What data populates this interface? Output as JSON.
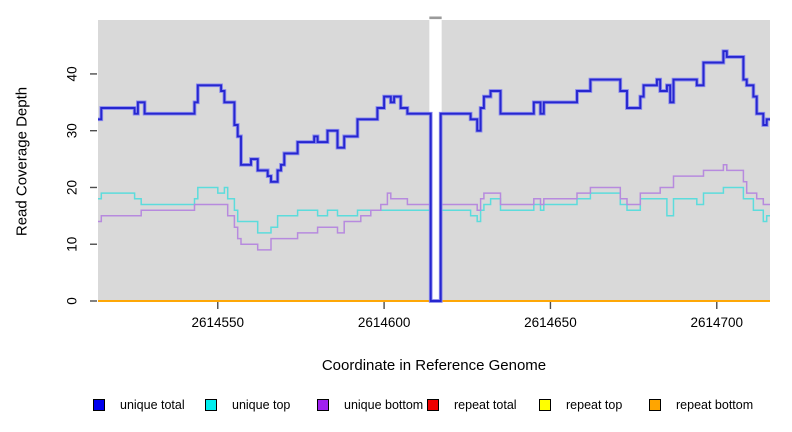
{
  "chart_data": {
    "type": "line",
    "step": true,
    "title": "",
    "xlabel": "Coordinate in Reference Genome",
    "ylabel": "Read Coverage Depth",
    "xlim": [
      2614514,
      2614716
    ],
    "ylim": [
      0,
      49.5
    ],
    "x_ticks": [
      2614550,
      2614600,
      2614650,
      2614700
    ],
    "y_ticks": [
      0,
      10,
      20,
      30,
      40
    ],
    "plot_bg_color": "#d9d9d9",
    "grid": "off",
    "legend_position": "bottom",
    "gap_region": {
      "start": 2614613.6,
      "end": 2614617.3,
      "note": "white band, coverage drops to 0"
    },
    "series": [
      {
        "name": "repeat total",
        "line_color": "#ee0000",
        "width": 1.6,
        "points": [
          [
            2614514,
            0
          ],
          [
            2614716,
            0
          ]
        ]
      },
      {
        "name": "repeat top",
        "line_color": "#ffff00",
        "width": 1.6,
        "points": [
          [
            2614514,
            0
          ],
          [
            2614716,
            0
          ]
        ]
      },
      {
        "name": "repeat bottom",
        "line_color": "#ffa500",
        "width": 1.8,
        "points": [
          [
            2614514,
            0
          ],
          [
            2614716,
            0
          ]
        ]
      },
      {
        "name": "unique top",
        "line_color": "#5cdcdc",
        "width": 1.5,
        "points": [
          [
            2614514,
            18
          ],
          [
            2614515,
            19
          ],
          [
            2614525,
            18
          ],
          [
            2614527,
            17
          ],
          [
            2614543,
            18
          ],
          [
            2614544,
            20
          ],
          [
            2614550,
            19
          ],
          [
            2614552,
            20
          ],
          [
            2614553,
            18
          ],
          [
            2614555,
            16
          ],
          [
            2614556,
            14
          ],
          [
            2614562,
            12
          ],
          [
            2614566,
            13
          ],
          [
            2614568,
            15
          ],
          [
            2614574,
            16
          ],
          [
            2614580,
            15
          ],
          [
            2614583,
            16
          ],
          [
            2614586,
            15
          ],
          [
            2614592,
            16
          ],
          [
            2614626,
            15
          ],
          [
            2614628,
            14
          ],
          [
            2614629,
            16
          ],
          [
            2614630,
            17
          ],
          [
            2614632,
            18
          ],
          [
            2614635,
            16
          ],
          [
            2614645,
            17
          ],
          [
            2614647,
            16
          ],
          [
            2614648,
            17
          ],
          [
            2614658,
            18
          ],
          [
            2614662,
            19
          ],
          [
            2614671,
            17
          ],
          [
            2614673,
            16
          ],
          [
            2614677,
            18
          ],
          [
            2614685,
            15
          ],
          [
            2614687,
            18
          ],
          [
            2614694,
            17
          ],
          [
            2614696,
            19
          ],
          [
            2614702,
            20
          ],
          [
            2614708,
            18
          ],
          [
            2614711,
            16
          ],
          [
            2614714,
            14
          ],
          [
            2614715,
            15
          ],
          [
            2614716,
            15
          ]
        ]
      },
      {
        "name": "unique bottom",
        "line_color": "#b78ade",
        "width": 1.5,
        "points": [
          [
            2614514,
            14
          ],
          [
            2614515,
            15
          ],
          [
            2614527,
            16
          ],
          [
            2614543,
            17
          ],
          [
            2614553,
            15
          ],
          [
            2614555,
            13
          ],
          [
            2614556,
            11
          ],
          [
            2614557,
            10
          ],
          [
            2614562,
            9
          ],
          [
            2614566,
            11
          ],
          [
            2614574,
            12
          ],
          [
            2614580,
            13
          ],
          [
            2614586,
            12
          ],
          [
            2614588,
            14
          ],
          [
            2614593,
            15
          ],
          [
            2614596,
            16
          ],
          [
            2614599,
            17
          ],
          [
            2614601,
            19
          ],
          [
            2614602,
            18
          ],
          [
            2614607,
            17
          ],
          [
            2614628,
            16
          ],
          [
            2614629,
            18
          ],
          [
            2614630,
            19
          ],
          [
            2614635,
            17
          ],
          [
            2614645,
            18
          ],
          [
            2614647,
            17
          ],
          [
            2614648,
            18
          ],
          [
            2614658,
            19
          ],
          [
            2614662,
            20
          ],
          [
            2614671,
            18
          ],
          [
            2614673,
            17
          ],
          [
            2614677,
            19
          ],
          [
            2614683,
            20
          ],
          [
            2614687,
            22
          ],
          [
            2614696,
            23
          ],
          [
            2614702,
            24
          ],
          [
            2614703,
            23
          ],
          [
            2614708,
            21
          ],
          [
            2614709,
            19
          ],
          [
            2614712,
            18
          ],
          [
            2614714,
            17
          ],
          [
            2614716,
            17
          ]
        ]
      },
      {
        "name": "unique total",
        "line_color": "#2626cf",
        "halo_color": "#8a8aee",
        "width": 1.9,
        "points": [
          [
            2614514,
            32
          ],
          [
            2614515,
            34
          ],
          [
            2614525,
            33
          ],
          [
            2614526,
            35
          ],
          [
            2614528,
            33
          ],
          [
            2614543,
            35
          ],
          [
            2614544,
            38
          ],
          [
            2614551,
            37
          ],
          [
            2614552,
            35
          ],
          [
            2614555,
            31
          ],
          [
            2614556,
            29
          ],
          [
            2614557,
            24
          ],
          [
            2614560,
            25
          ],
          [
            2614562,
            23
          ],
          [
            2614565,
            22
          ],
          [
            2614566,
            21
          ],
          [
            2614568,
            23
          ],
          [
            2614569,
            24
          ],
          [
            2614570,
            26
          ],
          [
            2614574,
            28
          ],
          [
            2614579,
            29
          ],
          [
            2614580,
            28
          ],
          [
            2614583,
            30
          ],
          [
            2614586,
            27
          ],
          [
            2614588,
            29
          ],
          [
            2614592,
            32
          ],
          [
            2614598,
            34
          ],
          [
            2614600,
            36
          ],
          [
            2614602,
            35
          ],
          [
            2614603,
            36
          ],
          [
            2614605,
            34
          ],
          [
            2614607,
            33
          ],
          [
            2614614,
            0
          ],
          [
            2614617,
            33
          ],
          [
            2614626,
            32
          ],
          [
            2614628,
            30
          ],
          [
            2614629,
            34
          ],
          [
            2614630,
            36
          ],
          [
            2614632,
            37
          ],
          [
            2614635,
            33
          ],
          [
            2614645,
            35
          ],
          [
            2614647,
            33
          ],
          [
            2614648,
            35
          ],
          [
            2614658,
            37
          ],
          [
            2614662,
            39
          ],
          [
            2614671,
            37
          ],
          [
            2614673,
            34
          ],
          [
            2614677,
            36
          ],
          [
            2614678,
            38
          ],
          [
            2614682,
            39
          ],
          [
            2614683,
            37
          ],
          [
            2614685,
            38
          ],
          [
            2614686,
            35
          ],
          [
            2614687,
            39
          ],
          [
            2614694,
            38
          ],
          [
            2614696,
            42
          ],
          [
            2614702,
            44
          ],
          [
            2614703,
            43
          ],
          [
            2614708,
            39
          ],
          [
            2614709,
            38
          ],
          [
            2614711,
            36
          ],
          [
            2614712,
            33
          ],
          [
            2614714,
            31
          ],
          [
            2614715,
            32
          ],
          [
            2614716,
            32
          ]
        ]
      }
    ]
  },
  "legend": [
    {
      "label": "unique total",
      "color": "#0000ee"
    },
    {
      "label": "unique top",
      "color": "#00eeee"
    },
    {
      "label": "unique bottom",
      "color": "#a020f0"
    },
    {
      "label": "repeat total",
      "color": "#ee0000"
    },
    {
      "label": "repeat top",
      "color": "#ffff00"
    },
    {
      "label": "repeat bottom",
      "color": "#ffa500"
    }
  ]
}
